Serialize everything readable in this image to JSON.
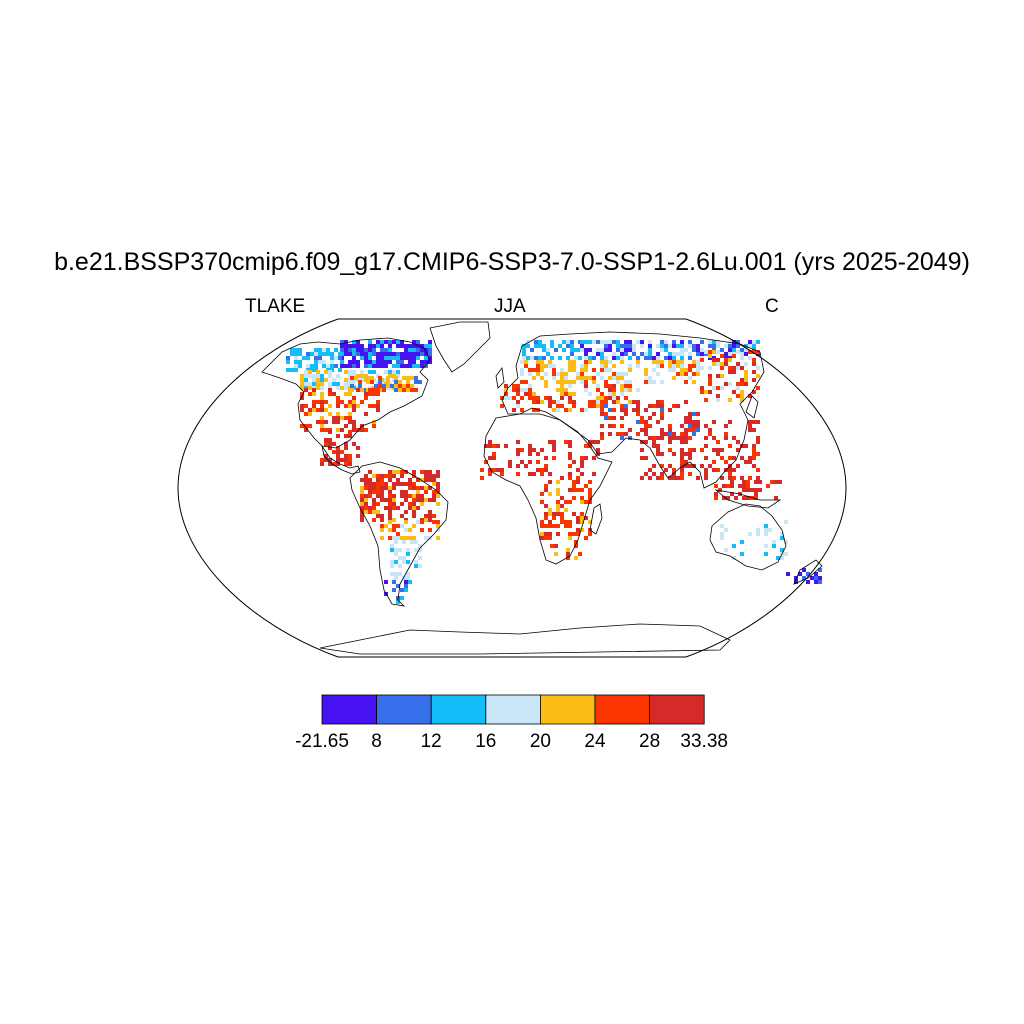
{
  "title": "b.e21.BSSP370cmip6.f09_g17.CMIP6-SSP3-7.0-SSP1-2.6Lu.001 (yrs 2025-2049)",
  "left_label": "TLAKE",
  "center_label": "JJA",
  "right_label": "C",
  "colorbar": {
    "colors": [
      "#4712f2",
      "#3570ea",
      "#14bdf8",
      "#c8e6f7",
      "#fbbc14",
      "#fa3500",
      "#d62a28"
    ],
    "labels": [
      "-21.65",
      "8",
      "12",
      "16",
      "20",
      "24",
      "28",
      "33.38"
    ]
  }
}
